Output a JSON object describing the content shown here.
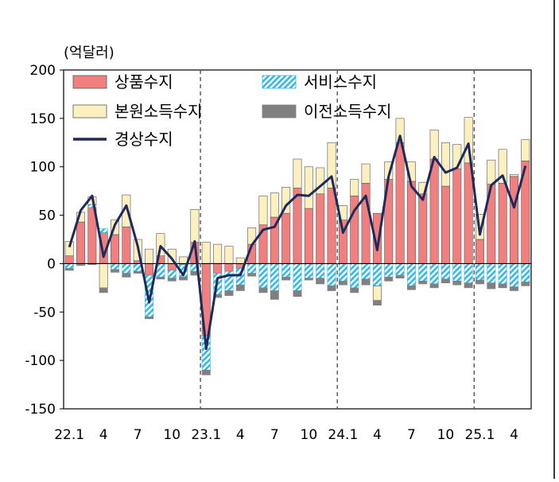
{
  "chart_data": {
    "type": "bar",
    "unit_label": "(억달러)",
    "ylim": [
      -150,
      200
    ],
    "yticks": [
      200,
      150,
      100,
      50,
      0,
      -50,
      -100,
      -150
    ],
    "xtick_labels": [
      {
        "index": 0,
        "label": "22.1"
      },
      {
        "index": 3,
        "label": "4"
      },
      {
        "index": 6,
        "label": "7"
      },
      {
        "index": 9,
        "label": "10"
      },
      {
        "index": 12,
        "label": "23.1"
      },
      {
        "index": 15,
        "label": "4"
      },
      {
        "index": 18,
        "label": "7"
      },
      {
        "index": 21,
        "label": "10"
      },
      {
        "index": 24,
        "label": "24.1"
      },
      {
        "index": 27,
        "label": "4"
      },
      {
        "index": 30,
        "label": "7"
      },
      {
        "index": 33,
        "label": "10"
      },
      {
        "index": 36,
        "label": "25.1"
      },
      {
        "index": 39,
        "label": "4"
      }
    ],
    "year_dividers": [
      12,
      24,
      36
    ],
    "stacked": true,
    "series": [
      {
        "name": "상품수지",
        "kind": "bar",
        "color": "#f08080",
        "values": [
          8,
          43,
          58,
          32,
          30,
          38,
          3,
          -12,
          8,
          -7,
          -1,
          22,
          -75,
          -10,
          -8,
          -5,
          20,
          40,
          48,
          52,
          78,
          57,
          72,
          78,
          45,
          70,
          83,
          52,
          87,
          125,
          85,
          72,
          108,
          80,
          98,
          104,
          25,
          82,
          83,
          90,
          106
        ]
      },
      {
        "name": "서비스수지",
        "kind": "bar",
        "color": "#33b8e8",
        "values": [
          -5,
          -1,
          3,
          4,
          -6,
          -10,
          -8,
          -43,
          -14,
          -8,
          -13,
          -8,
          -35,
          -22,
          -20,
          -17,
          -10,
          -25,
          -28,
          -14,
          -28,
          -15,
          -15,
          -23,
          -18,
          -25,
          -16,
          -23,
          -14,
          -12,
          -23,
          -18,
          -21,
          -16,
          -18,
          -20,
          -17,
          -20,
          -21,
          -24,
          -19
        ]
      },
      {
        "name": "본원소득수지",
        "kind": "bar",
        "color": "#fdf0c0",
        "values": [
          15,
          10,
          8,
          -25,
          15,
          33,
          22,
          15,
          23,
          15,
          7,
          34,
          22,
          20,
          18,
          6,
          17,
          30,
          25,
          27,
          30,
          43,
          27,
          47,
          15,
          17,
          20,
          -15,
          18,
          25,
          20,
          12,
          30,
          45,
          25,
          47,
          26,
          25,
          35,
          2,
          22
        ]
      },
      {
        "name": "이전소득수지",
        "kind": "bar",
        "color": "#808080",
        "values": [
          -2,
          -1,
          -1,
          -5,
          -3,
          -4,
          -2,
          -2,
          -2,
          -3,
          -3,
          -4,
          -5,
          -3,
          -5,
          -6,
          -3,
          -5,
          -9,
          -3,
          -6,
          -2,
          -6,
          -5,
          -4,
          -5,
          -6,
          -5,
          -4,
          -3,
          -4,
          -3,
          -4,
          -4,
          -4,
          -5,
          -4,
          -6,
          -4,
          -4,
          -4
        ]
      },
      {
        "name": "경상수지",
        "kind": "line",
        "color": "#1f2a5a",
        "values": [
          17,
          55,
          70,
          7,
          40,
          60,
          18,
          -40,
          18,
          5,
          -12,
          23,
          -88,
          -15,
          -12,
          -12,
          19,
          35,
          38,
          60,
          71,
          70,
          80,
          90,
          32,
          55,
          70,
          14,
          90,
          132,
          80,
          66,
          110,
          94,
          99,
          124,
          30,
          81,
          91,
          58,
          101
        ]
      }
    ],
    "legend": {
      "placement": "top",
      "rows": [
        [
          "상품수지",
          "서비스수지"
        ],
        [
          "본원소득수지",
          "이전소득수지"
        ],
        [
          "경상수지"
        ]
      ]
    }
  }
}
